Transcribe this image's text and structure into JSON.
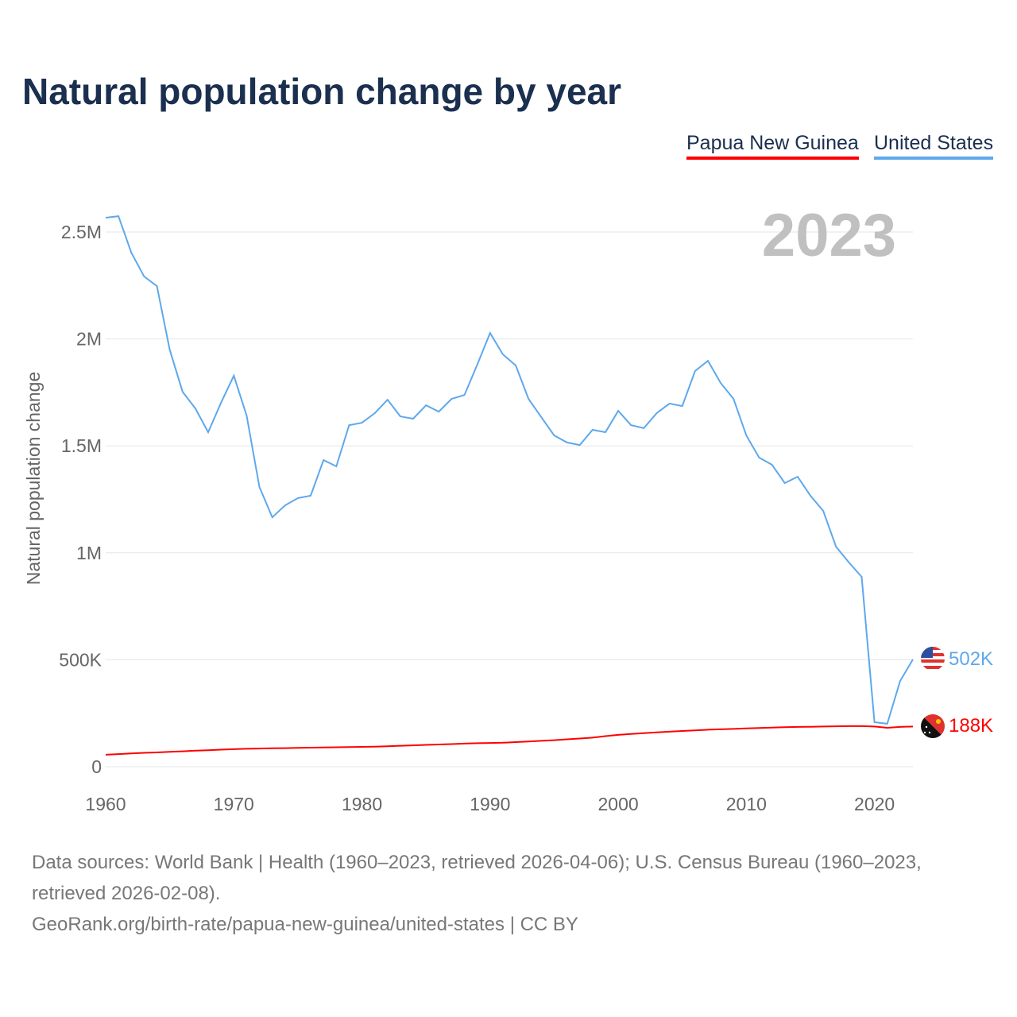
{
  "title": "Natural population change by year",
  "legend": [
    {
      "label": "Papua New Guinea",
      "color": "#ff0000"
    },
    {
      "label": "United States",
      "color": "#5ea8ec"
    }
  ],
  "year_display": "2023",
  "end_labels": {
    "png": "188K",
    "us": "502K"
  },
  "footer": {
    "sources": "Data sources: World Bank | Health (1960–2023, retrieved 2026-04-06); U.S. Census Bureau (1960–2023, retrieved 2026-02-08).",
    "link": "GeoRank.org/birth-rate/papua-new-guinea/united-states | CC BY"
  },
  "chart_data": {
    "type": "line",
    "title": "Natural population change by year",
    "xlabel": "",
    "ylabel": "Natural population change",
    "xlim": [
      1960,
      2023
    ],
    "ylim": [
      0,
      2500000
    ],
    "xticks": [
      1960,
      1970,
      1980,
      1990,
      2000,
      2010,
      2020
    ],
    "yticks": [
      {
        "v": 0,
        "l": "0"
      },
      {
        "v": 500000,
        "l": "500K"
      },
      {
        "v": 1000000,
        "l": "1M"
      },
      {
        "v": 1500000,
        "l": "1.5M"
      },
      {
        "v": 2000000,
        "l": "2M"
      },
      {
        "v": 2500000,
        "l": "2.5M"
      }
    ],
    "grid": true,
    "legend_position": "top-right",
    "x": [
      1960,
      1961,
      1962,
      1963,
      1964,
      1965,
      1966,
      1967,
      1968,
      1969,
      1970,
      1971,
      1972,
      1973,
      1974,
      1975,
      1976,
      1977,
      1978,
      1979,
      1980,
      1981,
      1982,
      1983,
      1984,
      1985,
      1986,
      1987,
      1988,
      1989,
      1990,
      1991,
      1992,
      1993,
      1994,
      1995,
      1996,
      1997,
      1998,
      1999,
      2000,
      2001,
      2002,
      2003,
      2004,
      2005,
      2006,
      2007,
      2008,
      2009,
      2010,
      2011,
      2012,
      2013,
      2014,
      2015,
      2016,
      2017,
      2018,
      2019,
      2020,
      2021,
      2022,
      2023
    ],
    "series": [
      {
        "name": "United States",
        "color": "#5ea8ec",
        "values": [
          2567000,
          2574000,
          2403000,
          2292000,
          2247000,
          1950000,
          1753000,
          1675000,
          1564000,
          1701000,
          1828000,
          1642000,
          1308000,
          1166000,
          1222000,
          1256000,
          1267000,
          1434000,
          1404000,
          1597000,
          1608000,
          1653000,
          1716000,
          1638000,
          1627000,
          1690000,
          1660000,
          1720000,
          1738000,
          1880000,
          2028000,
          1928000,
          1876000,
          1720000,
          1634000,
          1549000,
          1516000,
          1504000,
          1575000,
          1564000,
          1664000,
          1597000,
          1583000,
          1653000,
          1698000,
          1686000,
          1850000,
          1898000,
          1794000,
          1720000,
          1549000,
          1445000,
          1412000,
          1326000,
          1356000,
          1267000,
          1196000,
          1029000,
          955000,
          888000,
          208000,
          201000,
          401000,
          502000
        ]
      },
      {
        "name": "Papua New Guinea",
        "color": "#ff0000",
        "values": [
          56000,
          59000,
          62000,
          65000,
          67000,
          70000,
          72000,
          75000,
          77000,
          80000,
          82000,
          84000,
          85000,
          86000,
          87000,
          88000,
          89000,
          90000,
          91000,
          92000,
          93000,
          94000,
          96000,
          98000,
          100000,
          102000,
          104000,
          106000,
          108000,
          110000,
          111000,
          112000,
          115000,
          118000,
          121000,
          124000,
          128000,
          132000,
          136000,
          143000,
          149000,
          153000,
          157000,
          161000,
          164000,
          167000,
          170000,
          173000,
          175000,
          177000,
          179000,
          181000,
          183000,
          185000,
          186000,
          187000,
          188000,
          189000,
          190000,
          190000,
          188000,
          182000,
          186000,
          188000
        ]
      }
    ]
  }
}
